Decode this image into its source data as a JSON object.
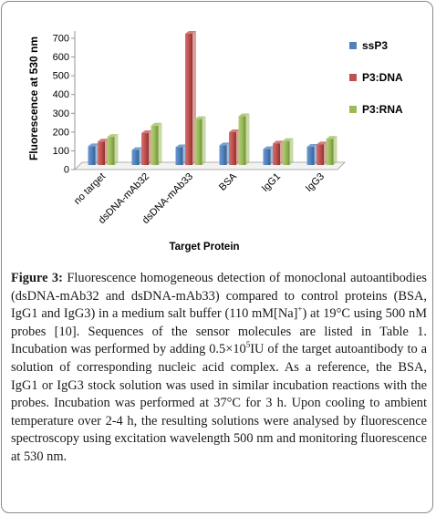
{
  "chart_data": {
    "type": "bar",
    "categories": [
      "no target",
      "dsDNA-mAb32",
      "dsDNA-mAb33",
      "BSA",
      "IgG1",
      "IgG3"
    ],
    "series": [
      {
        "name": "ssP3",
        "color": "#4f81bd",
        "values": [
          100,
          80,
          95,
          105,
          85,
          97
        ]
      },
      {
        "name": "P3:DNA",
        "color": "#c0504d",
        "values": [
          125,
          170,
          700,
          175,
          115,
          110
        ]
      },
      {
        "name": "P3:RNA",
        "color": "#9bbb59",
        "values": [
          150,
          210,
          245,
          260,
          128,
          140
        ]
      }
    ],
    "ylabel": "Fluorescence at 530 nm",
    "xlabel": "Target Protein",
    "ylim": [
      0,
      700
    ],
    "yticks": [
      0,
      100,
      200,
      300,
      400,
      500,
      600,
      700
    ],
    "grid": false,
    "legend": "right"
  },
  "caption": {
    "label": "Figure 3:",
    "text_1": " Fluorescence homogeneous detection of monoclonal autoantibodies (dsDNA-mAb32 and dsDNA-mAb33) compared to control proteins (BSA, IgG1 and IgG3) in a medium salt buffer (110 mM[Na]",
    "sup_1": "+",
    "text_2": ") at 19°C using 500 nM probes [10]. Sequences of the sensor molecules are listed in Table 1. Incubation was performed by adding 0.5×10",
    "sup_2": "5",
    "text_3": "IU of the target autoantibody to a solution of corresponding nucleic acid complex. As a reference, the BSA, IgG1 or IgG3 stock solution was used in similar incubation reactions with the probes. Incubation was performed at 37°C for 3 h. Upon cooling to ambient temperature over 2-4 h, the resulting solutions were analysed by fluorescence spectroscopy using excitation wavelength 500 nm and monitoring fluorescence at 530 nm."
  }
}
